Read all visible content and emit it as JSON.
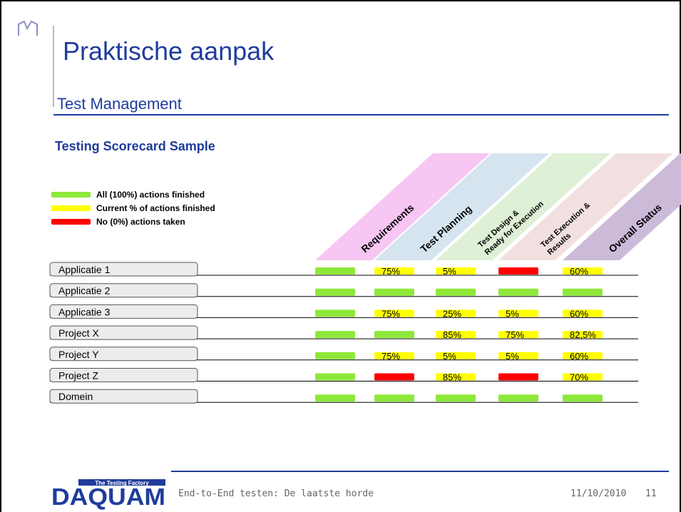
{
  "header": {
    "title": "Praktische aanpak",
    "subtitle": "Test Management"
  },
  "section_title": "Testing Scorecard Sample",
  "legend": [
    {
      "color": "#8ee83a",
      "text": "All (100%) actions finished"
    },
    {
      "color": "#ffff00",
      "text": "Current % of actions finished"
    },
    {
      "color": "#ff0000",
      "text": "No (0%) actions taken"
    }
  ],
  "columns": [
    {
      "label": [
        "Requirements"
      ],
      "color": "#f7c6f3"
    },
    {
      "label": [
        "Test Planning"
      ],
      "color": "#d6e4ef"
    },
    {
      "label": [
        "Test Design &",
        "Ready for Execution"
      ],
      "color": "#def0d6"
    },
    {
      "label": [
        "Test Execution &",
        "Results"
      ],
      "color": "#f2e0e0"
    },
    {
      "label": [
        "Overall Status"
      ],
      "color": "#cbbbd9"
    }
  ],
  "rows": [
    {
      "name": "Applicatie 1",
      "cells": [
        {
          "color": "#8ee83a"
        },
        {
          "color": "#ffff00",
          "text": "75%"
        },
        {
          "color": "#ffff00",
          "text": "5%"
        },
        {
          "color": "#ff0000"
        },
        {
          "color": "#ffff00",
          "text": "60%"
        }
      ]
    },
    {
      "name": "Applicatie 2",
      "cells": [
        {
          "color": "#8ee83a"
        },
        {
          "color": "#8ee83a"
        },
        {
          "color": "#8ee83a"
        },
        {
          "color": "#8ee83a"
        },
        {
          "color": "#8ee83a"
        }
      ]
    },
    {
      "name": "Applicatie 3",
      "cells": [
        {
          "color": "#8ee83a"
        },
        {
          "color": "#ffff00",
          "text": "75%"
        },
        {
          "color": "#ffff00",
          "text": "25%"
        },
        {
          "color": "#ffff00",
          "text": "5%"
        },
        {
          "color": "#ffff00",
          "text": "60%"
        }
      ]
    },
    {
      "name": "Project X",
      "cells": [
        {
          "color": "#8ee83a"
        },
        {
          "color": "#8ee83a"
        },
        {
          "color": "#ffff00",
          "text": "85%"
        },
        {
          "color": "#ffff00",
          "text": "75%"
        },
        {
          "color": "#ffff00",
          "text": "82,5%"
        }
      ]
    },
    {
      "name": "Project Y",
      "cells": [
        {
          "color": "#8ee83a"
        },
        {
          "color": "#ffff00",
          "text": "75%"
        },
        {
          "color": "#ffff00",
          "text": "5%"
        },
        {
          "color": "#ffff00",
          "text": "5%"
        },
        {
          "color": "#ffff00",
          "text": "60%"
        }
      ]
    },
    {
      "name": "Project Z",
      "cells": [
        {
          "color": "#8ee83a"
        },
        {
          "color": "#ff0000"
        },
        {
          "color": "#ffff00",
          "text": "85%"
        },
        {
          "color": "#ff0000"
        },
        {
          "color": "#ffff00",
          "text": "70%"
        }
      ]
    },
    {
      "name": "Domein",
      "cells": [
        {
          "color": "#8ee83a"
        },
        {
          "color": "#8ee83a"
        },
        {
          "color": "#8ee83a"
        },
        {
          "color": "#8ee83a"
        },
        {
          "color": "#8ee83a"
        }
      ]
    }
  ],
  "footer": {
    "logo_tagline": "The Testing Factory",
    "logo_text": "DAQUAM",
    "text": "End-to-End testen: De laatste horde",
    "date": "11/10/2010",
    "page": "11"
  }
}
